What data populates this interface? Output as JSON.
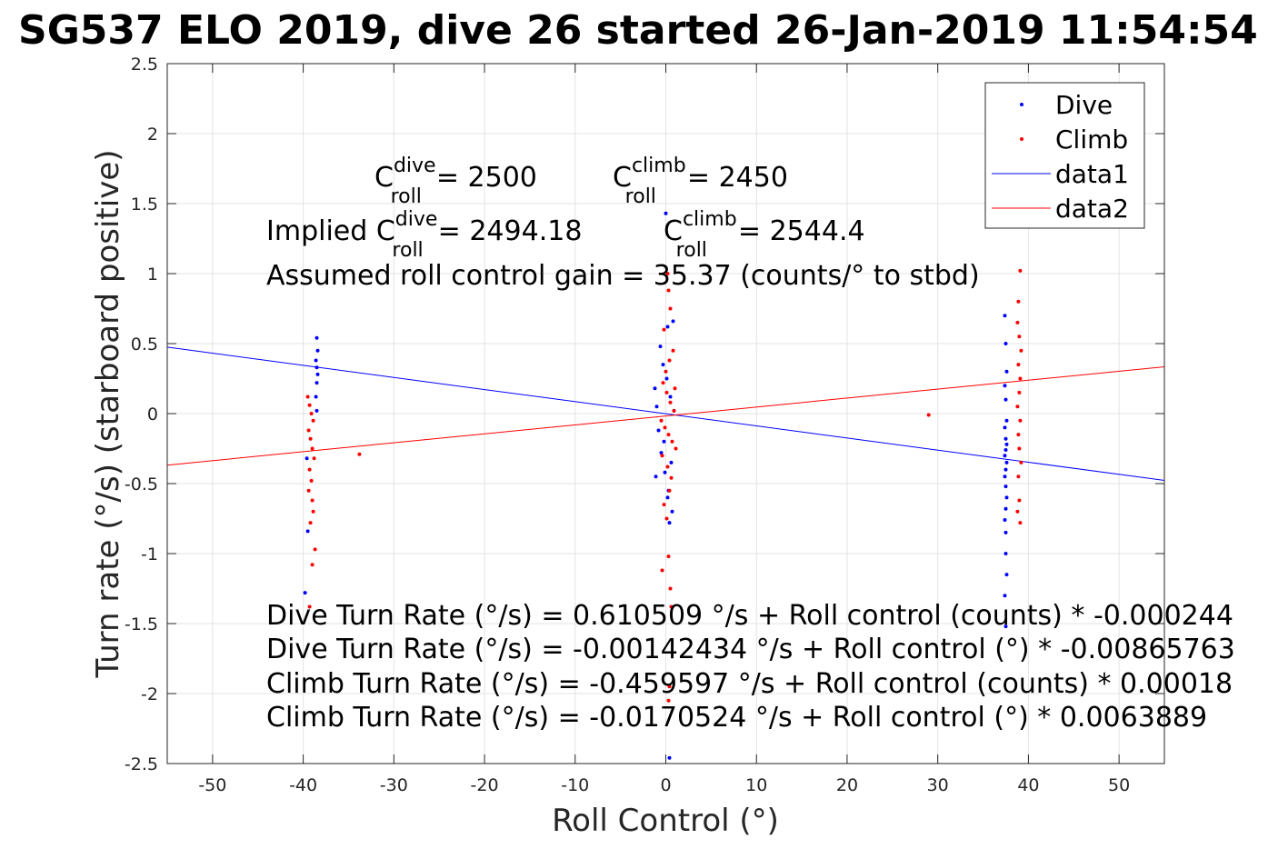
{
  "chart_data": {
    "type": "scatter",
    "title": "SG537 ELO 2019, dive 26 started 26-Jan-2019 11:54:54",
    "xlabel": "Roll Control (°)",
    "ylabel": "Turn rate (°/s) (starboard positive)",
    "xlim": [
      -55,
      55
    ],
    "ylim": [
      -2.5,
      2.5
    ],
    "grid": true,
    "legend_placement": "top-right",
    "xticks": [
      -50,
      -40,
      -30,
      -20,
      -10,
      0,
      10,
      20,
      30,
      40,
      50
    ],
    "yticks": [
      -2.5,
      -2,
      -1.5,
      -1,
      -0.5,
      0,
      0.5,
      1,
      1.5,
      2,
      2.5
    ],
    "xtick_labels": [
      "-50",
      "-40",
      "-30",
      "-20",
      "-10",
      "0",
      "10",
      "20",
      "30",
      "40",
      "50"
    ],
    "ytick_labels": [
      "-2.5",
      "-2",
      "-1.5",
      "-1",
      "-0.5",
      "0",
      "0.5",
      "1",
      "1.5",
      "2",
      "2.5"
    ],
    "legend": [
      {
        "label": "Dive",
        "kind": "marker",
        "color": "#0000ff"
      },
      {
        "label": "Climb",
        "kind": "marker",
        "color": "#ff0000"
      },
      {
        "label": "data1",
        "kind": "line",
        "color": "#0000ff"
      },
      {
        "label": "data2",
        "kind": "line",
        "color": "#ff0000"
      }
    ],
    "series": [
      {
        "name": "Dive",
        "kind": "scatter",
        "color": "#0000ff",
        "x": [
          -38.5,
          -38.4,
          -38.6,
          -38.5,
          -38.4,
          -38.5,
          -38.6,
          -38.5,
          -39.6,
          -39.5,
          -39.8,
          -1.2,
          -1.0,
          -0.8,
          -0.5,
          -0.3,
          -0.1,
          0.1,
          0.3,
          0.5,
          0.7,
          0.9,
          -0.6,
          -0.2,
          0.2,
          0.6,
          -1.1,
          0.4,
          0.0,
          0.8,
          0.4,
          0.2,
          37.4,
          37.5,
          37.6,
          37.4,
          37.5,
          37.6,
          37.4,
          37.5,
          37.6,
          37.5,
          37.4,
          37.6,
          37.5,
          37.4,
          37.5,
          37.6,
          37.5,
          37.4,
          37.5,
          37.5,
          37.6,
          37.4,
          37.5
        ],
        "y": [
          0.54,
          0.45,
          0.38,
          0.33,
          0.28,
          0.22,
          0.12,
          0.02,
          -0.32,
          -0.84,
          -1.28,
          0.18,
          0.05,
          -0.12,
          -0.28,
          0.35,
          -0.42,
          0.25,
          -0.55,
          0.12,
          -0.7,
          0.02,
          0.48,
          -0.2,
          0.62,
          -0.35,
          -0.45,
          -0.78,
          1.43,
          0.66,
          -2.46,
          -0.6,
          0.7,
          0.5,
          0.3,
          0.2,
          0.1,
          -0.05,
          -0.1,
          -0.18,
          -0.22,
          -0.26,
          -0.3,
          -0.35,
          -0.4,
          -0.45,
          -0.52,
          -0.6,
          -0.68,
          -0.76,
          -0.85,
          -1.0,
          -1.15,
          -1.3,
          -1.52
        ]
      },
      {
        "name": "Climb",
        "kind": "scatter",
        "color": "#ff0000",
        "x": [
          -39.5,
          -39.3,
          -39.1,
          -38.9,
          -39.4,
          -39.2,
          -39.0,
          -38.8,
          -39.3,
          -39.1,
          -39.4,
          -39.0,
          -38.9,
          -39.2,
          -38.7,
          -39.0,
          -39.3,
          -33.8,
          -0.3,
          0.1,
          0.5,
          0.9,
          -0.5,
          -0.1,
          0.3,
          0.7,
          1.1,
          0.0,
          0.4,
          0.8,
          -0.4,
          0.2,
          0.6,
          1.0,
          -0.2,
          0.5,
          0.3,
          0.2,
          0.4,
          -0.2,
          0.1,
          0.3,
          0.5,
          0.6,
          0.4,
          0.3,
          -0.4,
          39.1,
          38.9,
          38.8,
          39.0,
          39.2,
          38.9,
          39.1,
          39.0,
          38.8,
          39.1,
          38.9,
          39.0,
          39.2,
          38.9,
          39.0,
          38.8,
          39.1,
          29.0
        ],
        "y": [
          0.12,
          0.06,
          0.0,
          -0.05,
          -0.12,
          -0.18,
          -0.25,
          -0.32,
          -0.4,
          -0.48,
          -0.55,
          -0.62,
          -0.7,
          -0.78,
          -0.97,
          -1.08,
          -1.38,
          -0.29,
          0.22,
          0.15,
          0.08,
          0.02,
          -0.05,
          -0.1,
          -0.15,
          -0.2,
          -0.25,
          0.3,
          0.38,
          0.45,
          -0.3,
          -0.38,
          -0.46,
          0.18,
          0.6,
          0.75,
          0.88,
          1.0,
          -0.55,
          -0.65,
          -0.75,
          -1.02,
          -1.25,
          -1.38,
          -1.95,
          -2.05,
          -1.12,
          1.02,
          0.8,
          0.65,
          0.55,
          0.45,
          0.35,
          0.25,
          0.15,
          0.05,
          -0.05,
          -0.15,
          -0.25,
          -0.35,
          -0.45,
          -0.62,
          -0.7,
          -0.78,
          -0.01
        ]
      },
      {
        "name": "data1",
        "kind": "line",
        "color": "#0000ff",
        "x": [
          -55,
          55
        ],
        "y": [
          0.4744,
          -0.4773
        ]
      },
      {
        "name": "data2",
        "kind": "line",
        "color": "#ff0000",
        "x": [
          -55,
          55
        ],
        "y": [
          -0.3684,
          0.3343
        ]
      }
    ],
    "annotations": {
      "cdive_prefix": "C",
      "cdive_sup": "dive",
      "cdive_sub": "roll",
      "cdive_value": "= 2500",
      "cclimb_prefix": "C",
      "cclimb_sup": "climb",
      "cclimb_sub": "roll",
      "cclimb_value": "= 2450",
      "implied_prefix": "Implied C",
      "implied_dive_sup": "dive",
      "implied_dive_sub": "roll",
      "implied_dive_value": "= 2494.18",
      "implied_climb_prefix": "C",
      "implied_climb_sup": "climb",
      "implied_climb_sub": "roll",
      "implied_climb_value": "= 2544.4",
      "gain": "Assumed roll control gain = 35.37 (counts/° to stbd)",
      "fit_lines": [
        "Dive Turn Rate (°/s) = 0.610509 °/s + Roll control (counts) * -0.000244",
        "Dive Turn Rate (°/s) = -0.00142434 °/s + Roll control (°) * -0.00865763",
        "Climb Turn Rate (°/s) = -0.459597 °/s + Roll control (counts) * 0.00018",
        "Climb Turn Rate (°/s) = -0.0170524 °/s + Roll control (°) * 0.0063889"
      ]
    }
  }
}
